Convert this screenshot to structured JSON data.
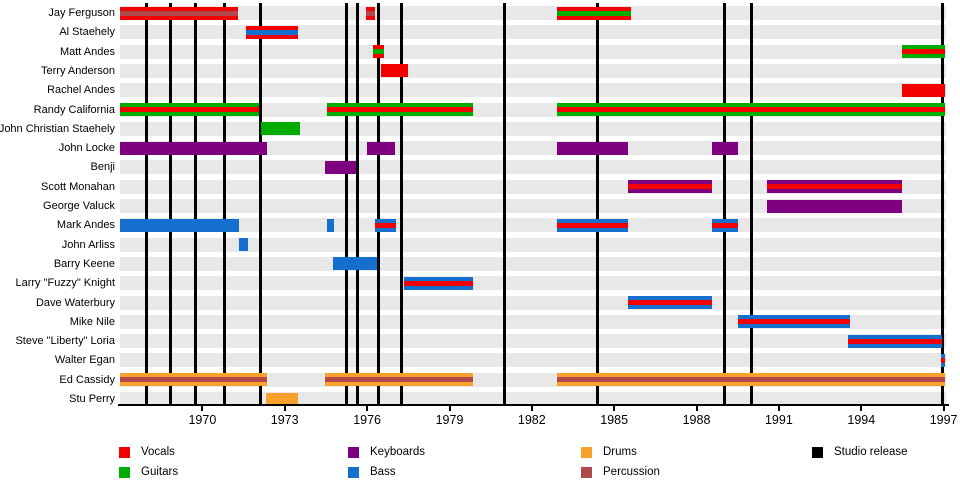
{
  "chart_data": {
    "type": "timeline",
    "title": "",
    "x_axis": {
      "start": 1967.0,
      "end": 1997.05,
      "ticks": [
        1970,
        1973,
        1976,
        1979,
        1982,
        1985,
        1988,
        1991,
        1994,
        1997
      ]
    },
    "colors": {
      "vocals": "#F40000",
      "guitars": "#00AC00",
      "keyboards": "#7F007F",
      "bass": "#1470CC",
      "drums": "#F8A12D",
      "percussion": "#B0494C",
      "studio_release": "#000000",
      "row_stripe": "#E8E8E8"
    },
    "members": [
      {
        "name": "Jay Ferguson",
        "segments": [
          {
            "from": 1967.0,
            "to": 1971.3,
            "roles": [
              "vocals",
              "percussion"
            ]
          },
          {
            "from": 1975.95,
            "to": 1976.3,
            "roles": [
              "vocals",
              "percussion"
            ]
          },
          {
            "from": 1982.9,
            "to": 1985.6,
            "roles": [
              "vocals",
              "guitars"
            ]
          }
        ]
      },
      {
        "name": "Al Staehely",
        "segments": [
          {
            "from": 1971.6,
            "to": 1973.5,
            "roles": [
              "vocals",
              "bass"
            ]
          }
        ]
      },
      {
        "name": "Matt Andes",
        "segments": [
          {
            "from": 1976.2,
            "to": 1976.6,
            "roles": [
              "vocals",
              "guitars"
            ]
          },
          {
            "from": 1995.5,
            "to": 1997.05,
            "roles": [
              "guitars",
              "vocals"
            ]
          }
        ]
      },
      {
        "name": "Terry Anderson",
        "segments": [
          {
            "from": 1976.5,
            "to": 1977.5,
            "roles": [
              "vocals"
            ]
          }
        ]
      },
      {
        "name": "Rachel Andes",
        "segments": [
          {
            "from": 1995.5,
            "to": 1997.05,
            "roles": [
              "vocals"
            ]
          }
        ]
      },
      {
        "name": "Randy California",
        "segments": [
          {
            "from": 1967.0,
            "to": 1972.05,
            "roles": [
              "guitars",
              "vocals"
            ]
          },
          {
            "from": 1974.55,
            "to": 1979.85,
            "roles": [
              "guitars",
              "vocals"
            ]
          },
          {
            "from": 1982.9,
            "to": 1997.05,
            "roles": [
              "guitars",
              "vocals"
            ]
          }
        ]
      },
      {
        "name": "John Christian Staehely",
        "segments": [
          {
            "from": 1972.15,
            "to": 1973.55,
            "roles": [
              "guitars"
            ]
          }
        ]
      },
      {
        "name": "John Locke",
        "segments": [
          {
            "from": 1967.0,
            "to": 1972.35,
            "roles": [
              "keyboards"
            ]
          },
          {
            "from": 1976.0,
            "to": 1977.0,
            "roles": [
              "keyboards"
            ]
          },
          {
            "from": 1982.9,
            "to": 1985.5,
            "roles": [
              "keyboards"
            ]
          },
          {
            "from": 1988.55,
            "to": 1989.5,
            "roles": [
              "keyboards"
            ]
          }
        ]
      },
      {
        "name": "Benji",
        "segments": [
          {
            "from": 1974.45,
            "to": 1975.6,
            "roles": [
              "keyboards"
            ]
          }
        ]
      },
      {
        "name": "Scott Monahan",
        "segments": [
          {
            "from": 1985.5,
            "to": 1988.55,
            "roles": [
              "keyboards",
              "vocals"
            ]
          },
          {
            "from": 1990.55,
            "to": 1995.5,
            "roles": [
              "keyboards",
              "vocals"
            ]
          }
        ]
      },
      {
        "name": "George Valuck",
        "segments": [
          {
            "from": 1990.55,
            "to": 1995.5,
            "roles": [
              "keyboards"
            ]
          }
        ]
      },
      {
        "name": "Mark Andes",
        "segments": [
          {
            "from": 1967.0,
            "to": 1971.35,
            "roles": [
              "bass"
            ]
          },
          {
            "from": 1974.55,
            "to": 1974.8,
            "roles": [
              "bass"
            ]
          },
          {
            "from": 1976.3,
            "to": 1977.05,
            "roles": [
              "bass",
              "vocals"
            ]
          },
          {
            "from": 1982.9,
            "to": 1985.5,
            "roles": [
              "bass",
              "vocals"
            ]
          },
          {
            "from": 1988.55,
            "to": 1989.5,
            "roles": [
              "bass",
              "vocals"
            ]
          }
        ]
      },
      {
        "name": "John Arliss",
        "segments": [
          {
            "from": 1971.35,
            "to": 1971.65,
            "roles": [
              "bass"
            ]
          }
        ]
      },
      {
        "name": "Barry Keene",
        "segments": [
          {
            "from": 1974.75,
            "to": 1976.35,
            "roles": [
              "bass"
            ]
          }
        ]
      },
      {
        "name": "Larry \"Fuzzy\" Knight",
        "segments": [
          {
            "from": 1977.35,
            "to": 1979.85,
            "roles": [
              "bass",
              "vocals"
            ]
          }
        ]
      },
      {
        "name": "Dave Waterbury",
        "segments": [
          {
            "from": 1985.5,
            "to": 1988.55,
            "roles": [
              "bass",
              "vocals"
            ]
          }
        ]
      },
      {
        "name": "Mike Nile",
        "segments": [
          {
            "from": 1989.5,
            "to": 1993.6,
            "roles": [
              "bass",
              "vocals"
            ]
          }
        ]
      },
      {
        "name": "Steve \"Liberty\" Loria",
        "segments": [
          {
            "from": 1993.5,
            "to": 1996.95,
            "roles": [
              "bass",
              "vocals"
            ]
          }
        ]
      },
      {
        "name": "Walter Egan",
        "segments": [
          {
            "from": 1996.9,
            "to": 1997.05,
            "roles": [
              "bass",
              "vocals"
            ]
          }
        ]
      },
      {
        "name": "Ed Cassidy",
        "segments": [
          {
            "from": 1967.0,
            "to": 1972.35,
            "roles": [
              "drums",
              "percussion"
            ]
          },
          {
            "from": 1974.45,
            "to": 1979.85,
            "roles": [
              "drums",
              "percussion"
            ]
          },
          {
            "from": 1982.9,
            "to": 1997.05,
            "roles": [
              "drums",
              "percussion"
            ]
          }
        ]
      },
      {
        "name": "Stu Perry",
        "segments": [
          {
            "from": 1972.3,
            "to": 1973.5,
            "roles": [
              "drums"
            ]
          }
        ]
      }
    ],
    "releases": [
      1967.95,
      1968.85,
      1969.75,
      1970.8,
      1972.1,
      1975.25,
      1975.65,
      1976.4,
      1977.25,
      1981.0,
      1984.4,
      1989.0,
      1990.0,
      1996.95
    ],
    "legend": [
      {
        "label": "Vocals",
        "color": "vocals",
        "col": 0,
        "row": 0
      },
      {
        "label": "Guitars",
        "color": "guitars",
        "col": 0,
        "row": 1
      },
      {
        "label": "Keyboards",
        "color": "keyboards",
        "col": 1,
        "row": 0
      },
      {
        "label": "Bass",
        "color": "bass",
        "col": 1,
        "row": 1
      },
      {
        "label": "Drums",
        "color": "drums",
        "col": 2,
        "row": 0
      },
      {
        "label": "Percussion",
        "color": "percussion",
        "col": 2,
        "row": 1
      },
      {
        "label": "Studio release",
        "color": "studio_release",
        "col": 3,
        "row": 0
      }
    ]
  }
}
